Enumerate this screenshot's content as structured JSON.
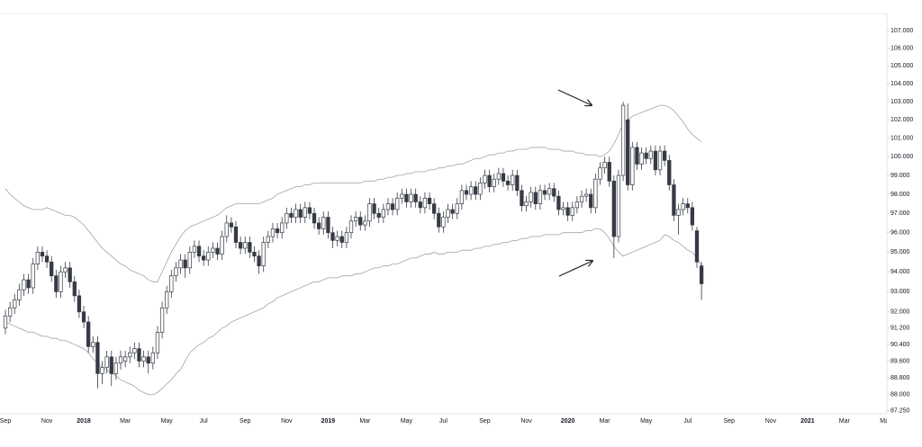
{
  "chart_data": {
    "type": "candlestick",
    "log": true,
    "ylim": [
      87.1,
      108
    ],
    "yticks": [
      {
        "value": 107,
        "label": "107.000"
      },
      {
        "value": 106,
        "label": "106.000"
      },
      {
        "value": 105,
        "label": "105.000"
      },
      {
        "value": 104,
        "label": "104.000"
      },
      {
        "value": 103,
        "label": "103.000"
      },
      {
        "value": 102,
        "label": "102.000"
      },
      {
        "value": 101,
        "label": "101.000"
      },
      {
        "value": 100,
        "label": "100.000"
      },
      {
        "value": 99,
        "label": "99.000"
      },
      {
        "value": 98,
        "label": "98.000"
      },
      {
        "value": 97,
        "label": "97.000"
      },
      {
        "value": 96,
        "label": "96.000"
      },
      {
        "value": 95,
        "label": "95.000"
      },
      {
        "value": 94,
        "label": "94.000"
      },
      {
        "value": 93,
        "label": "93.000"
      },
      {
        "value": 92,
        "label": "92.000"
      },
      {
        "value": 91.2,
        "label": "91.200"
      },
      {
        "value": 90.4,
        "label": "90.400"
      },
      {
        "value": 89.6,
        "label": "89.600"
      },
      {
        "value": 88.8,
        "label": "88.800"
      },
      {
        "value": 88,
        "label": "88.000"
      },
      {
        "value": 87.25,
        "label": "87.250"
      }
    ],
    "up_color": "#ffffff",
    "down_color": "#363a45",
    "categories": [
      "Sep",
      null,
      null,
      null,
      null,
      null,
      null,
      null,
      null,
      "Nov",
      null,
      null,
      null,
      null,
      null,
      null,
      null,
      "2018",
      null,
      null,
      null,
      null,
      null,
      null,
      null,
      null,
      "Mar",
      null,
      null,
      null,
      null,
      null,
      null,
      null,
      null,
      "May",
      null,
      null,
      null,
      null,
      null,
      null,
      null,
      "Jul",
      null,
      null,
      null,
      null,
      null,
      null,
      null,
      null,
      "Sep",
      null,
      null,
      null,
      null,
      null,
      null,
      null,
      null,
      "Nov",
      null,
      null,
      null,
      null,
      null,
      null,
      null,
      null,
      "2019",
      null,
      null,
      null,
      null,
      null,
      null,
      null,
      "Mar",
      null,
      null,
      null,
      null,
      null,
      null,
      null,
      null,
      "May",
      null,
      null,
      null,
      null,
      null,
      null,
      null,
      "Jul",
      null,
      null,
      null,
      null,
      null,
      null,
      null,
      null,
      "Sep",
      null,
      null,
      null,
      null,
      null,
      null,
      null,
      null,
      "Nov",
      null,
      null,
      null,
      null,
      null,
      null,
      null,
      null,
      "2020",
      null,
      null,
      null,
      null,
      null,
      null,
      null,
      "Mar",
      null,
      null,
      null,
      null,
      null,
      null,
      null,
      null,
      "May",
      null,
      null,
      null,
      null,
      null,
      null,
      null,
      null,
      "Jul",
      null,
      null,
      null,
      null,
      null,
      null,
      null,
      null,
      "Sep",
      null,
      null,
      null,
      null,
      null,
      null,
      null,
      null,
      "Nov",
      null,
      null,
      null,
      null,
      null,
      null,
      null,
      "2021",
      null,
      null,
      null,
      null,
      null,
      null,
      null,
      "Mar",
      null,
      null,
      null,
      null,
      null,
      null,
      null,
      null,
      "May"
    ],
    "open": [
      91.2,
      91.8,
      92.2,
      92.6,
      93.1,
      93.6,
      93.2,
      94.4,
      95.0,
      94.8,
      94.5,
      93.8,
      93.0,
      94.0,
      94.2,
      93.5,
      92.8,
      92.0,
      91.5,
      90.3,
      90.5,
      89.0,
      89.3,
      89.8,
      89.0,
      89.5,
      89.6,
      89.8,
      90.0,
      90.2,
      89.6,
      89.8,
      89.5,
      90.0,
      91.0,
      92.2,
      93.0,
      93.8,
      94.2,
      94.6,
      94.2,
      95.0,
      95.3,
      94.8,
      94.6,
      95.0,
      95.2,
      94.9,
      95.8,
      96.5,
      96.3,
      95.5,
      95.2,
      95.5,
      95.0,
      94.8,
      94.3,
      95.5,
      95.8,
      96.2,
      96.0,
      96.5,
      97.0,
      96.8,
      97.2,
      96.8,
      97.3,
      97.0,
      96.5,
      96.2,
      96.8,
      96.0,
      95.6,
      95.8,
      95.5,
      96.0,
      96.6,
      96.8,
      96.4,
      96.6,
      97.5,
      97.0,
      96.8,
      97.2,
      97.5,
      97.2,
      97.8,
      98.0,
      97.6,
      98.0,
      97.6,
      97.3,
      97.8,
      97.5,
      97.0,
      96.3,
      96.8,
      97.2,
      97.0,
      97.5,
      98.2,
      98.0,
      98.4,
      98.0,
      98.6,
      99.0,
      98.4,
      98.8,
      99.1,
      98.7,
      98.5,
      99.0,
      98.2,
      97.4,
      97.6,
      98.1,
      97.5,
      98.2,
      98.0,
      98.3,
      97.9,
      97.2,
      97.3,
      96.9,
      97.3,
      97.6,
      97.9,
      98.0,
      97.3,
      98.8,
      99.4,
      99.7,
      98.7,
      95.8,
      99.0,
      102.0,
      98.5,
      100.5,
      99.6,
      100.2,
      99.9,
      100.3,
      99.3,
      100.3,
      99.8,
      98.5,
      96.9,
      97.2,
      97.5,
      97.3,
      96.1,
      94.3,
      null,
      null,
      null,
      null,
      null,
      null,
      null,
      null,
      null,
      null,
      null,
      null,
      null,
      null,
      null,
      null,
      null,
      null,
      null,
      null,
      null,
      null,
      null,
      null,
      null,
      null,
      null,
      null,
      null,
      null,
      null,
      null,
      null,
      null,
      null,
      null,
      null,
      null,
      null,
      null
    ],
    "high": [
      92.1,
      92.5,
      92.9,
      93.4,
      93.9,
      93.9,
      94.7,
      95.3,
      95.3,
      95.1,
      94.8,
      94.1,
      94.3,
      94.5,
      94.5,
      93.8,
      93.1,
      92.3,
      91.8,
      90.8,
      90.8,
      89.6,
      90.1,
      90.1,
      89.8,
      90.1,
      90.1,
      90.3,
      90.5,
      90.5,
      90.1,
      90.1,
      90.3,
      91.3,
      92.5,
      93.3,
      94.1,
      94.5,
      94.9,
      94.9,
      95.3,
      95.6,
      95.6,
      95.1,
      95.3,
      95.5,
      95.5,
      96.1,
      96.9,
      96.8,
      96.6,
      95.8,
      95.8,
      95.8,
      95.3,
      95.1,
      95.8,
      96.1,
      96.5,
      96.5,
      96.8,
      97.3,
      97.3,
      97.5,
      97.5,
      97.6,
      97.6,
      97.3,
      96.8,
      97.1,
      97.1,
      96.3,
      96.1,
      96.1,
      96.3,
      96.9,
      97.1,
      97.1,
      96.9,
      97.8,
      97.8,
      97.3,
      97.5,
      97.8,
      97.8,
      98.1,
      98.3,
      98.3,
      98.3,
      98.3,
      97.9,
      98.1,
      98.1,
      97.8,
      97.3,
      97.1,
      97.5,
      97.5,
      97.8,
      98.5,
      98.5,
      98.7,
      98.7,
      98.9,
      99.3,
      99.3,
      99.1,
      99.4,
      99.4,
      99.0,
      99.3,
      99.3,
      98.5,
      97.9,
      98.4,
      98.4,
      98.5,
      98.5,
      98.6,
      98.6,
      98.2,
      97.6,
      97.6,
      97.6,
      97.9,
      98.2,
      98.3,
      98.3,
      99.1,
      99.7,
      100.0,
      100.0,
      99.0,
      99.3,
      103.0,
      102.9,
      100.8,
      100.8,
      100.5,
      100.5,
      100.6,
      100.6,
      100.6,
      100.6,
      100.1,
      98.8,
      97.5,
      97.8,
      97.8,
      97.6,
      96.3,
      94.5,
      null,
      null,
      null,
      null,
      null,
      null,
      null,
      null,
      null,
      null,
      null,
      null,
      null,
      null,
      null,
      null,
      null,
      null,
      null,
      null,
      null,
      null,
      null,
      null,
      null,
      null,
      null,
      null,
      null,
      null,
      null,
      null,
      null,
      null,
      null,
      null,
      null,
      null,
      null,
      null
    ],
    "low": [
      90.9,
      91.5,
      91.9,
      92.3,
      92.8,
      92.9,
      92.9,
      94.1,
      94.5,
      94.2,
      93.5,
      92.7,
      92.7,
      93.7,
      93.2,
      92.5,
      91.7,
      91.2,
      90.0,
      90.0,
      88.3,
      88.5,
      89.0,
      88.4,
      88.7,
      89.2,
      89.3,
      89.5,
      89.7,
      89.3,
      89.3,
      89.0,
      89.2,
      89.7,
      90.7,
      91.9,
      92.7,
      93.5,
      93.9,
      93.7,
      93.9,
      94.7,
      94.5,
      94.3,
      94.3,
      94.7,
      94.6,
      94.6,
      95.5,
      96.0,
      95.2,
      94.9,
      94.9,
      94.7,
      94.5,
      93.9,
      94.0,
      95.2,
      95.5,
      95.7,
      95.7,
      96.2,
      96.5,
      96.5,
      96.5,
      96.5,
      96.7,
      96.2,
      95.9,
      95.9,
      95.7,
      95.2,
      95.3,
      95.2,
      95.2,
      95.7,
      96.3,
      96.1,
      96.1,
      96.3,
      96.7,
      96.5,
      96.5,
      96.9,
      96.9,
      96.9,
      97.5,
      97.3,
      97.3,
      97.3,
      97.0,
      97.0,
      97.2,
      96.7,
      96.0,
      96.0,
      96.5,
      96.7,
      96.7,
      97.2,
      97.7,
      97.7,
      97.7,
      97.7,
      98.3,
      98.1,
      98.1,
      98.5,
      98.4,
      98.2,
      98.2,
      97.9,
      97.1,
      97.1,
      97.3,
      97.2,
      97.2,
      97.7,
      97.7,
      97.6,
      96.9,
      96.9,
      96.6,
      96.6,
      97.0,
      97.3,
      97.6,
      97.0,
      97.0,
      98.5,
      99.1,
      98.4,
      94.7,
      95.5,
      98.7,
      98.2,
      98.2,
      99.3,
      99.3,
      99.6,
      99.6,
      99.0,
      99.0,
      99.5,
      98.2,
      96.6,
      95.9,
      96.9,
      97.0,
      96.1,
      94.2,
      92.6,
      null,
      null,
      null,
      null,
      null,
      null,
      null,
      null,
      null,
      null,
      null,
      null,
      null,
      null,
      null,
      null,
      null,
      null,
      null,
      null,
      null,
      null,
      null,
      null,
      null,
      null,
      null,
      null,
      null,
      null,
      null,
      null,
      null,
      null,
      null,
      null,
      null,
      null,
      null,
      null
    ],
    "close": [
      91.8,
      92.2,
      92.6,
      93.1,
      93.6,
      93.2,
      94.4,
      95.0,
      94.8,
      94.5,
      93.8,
      93.0,
      94.0,
      94.2,
      93.5,
      92.8,
      92.0,
      91.5,
      90.3,
      90.5,
      89.0,
      89.3,
      89.8,
      89.0,
      89.5,
      89.8,
      89.8,
      90.0,
      90.2,
      89.6,
      89.8,
      89.5,
      90.0,
      91.0,
      92.2,
      93.0,
      93.8,
      94.2,
      94.6,
      94.2,
      95.0,
      95.3,
      94.8,
      94.6,
      95.0,
      95.2,
      94.9,
      95.8,
      96.5,
      96.3,
      95.5,
      95.2,
      95.5,
      95.0,
      94.8,
      94.3,
      95.5,
      95.8,
      96.2,
      96.0,
      96.5,
      97.0,
      96.8,
      97.2,
      96.8,
      97.3,
      97.0,
      96.5,
      96.2,
      96.8,
      96.0,
      95.6,
      95.8,
      95.5,
      96.0,
      96.6,
      96.8,
      96.4,
      96.6,
      97.5,
      97.0,
      96.8,
      97.2,
      97.5,
      97.2,
      97.8,
      98.0,
      97.6,
      98.0,
      97.6,
      97.3,
      97.8,
      97.5,
      97.0,
      96.3,
      96.8,
      97.2,
      97.0,
      97.5,
      98.2,
      98.0,
      98.4,
      98.0,
      98.6,
      99.0,
      98.4,
      98.8,
      99.1,
      98.7,
      98.5,
      99.0,
      98.2,
      97.4,
      97.6,
      98.1,
      97.5,
      98.2,
      98.0,
      98.3,
      97.9,
      97.2,
      97.3,
      96.9,
      97.3,
      97.6,
      97.9,
      98.0,
      97.3,
      98.8,
      99.4,
      99.7,
      98.7,
      95.8,
      99.0,
      102.8,
      98.5,
      100.5,
      99.6,
      100.2,
      99.9,
      100.3,
      99.3,
      100.3,
      99.8,
      98.5,
      96.9,
      97.2,
      97.5,
      97.3,
      96.4,
      94.5,
      93.4,
      null,
      null,
      null,
      null,
      null,
      null,
      null,
      null,
      null,
      null,
      null,
      null,
      null,
      null,
      null,
      null,
      null,
      null,
      null,
      null,
      null,
      null,
      null,
      null,
      null,
      null,
      null,
      null,
      null,
      null,
      null,
      null,
      null,
      null,
      null,
      null,
      null,
      null,
      null,
      null
    ],
    "bands": [
      {
        "color": "#a3a3a3",
        "values": [
          98.3,
          98.0,
          97.8,
          97.6,
          97.4,
          97.3,
          97.2,
          97.2,
          97.2,
          97.3,
          97.2,
          97.1,
          97.0,
          96.9,
          96.9,
          96.8,
          96.6,
          96.4,
          96.1,
          95.8,
          95.5,
          95.2,
          95.0,
          94.8,
          94.6,
          94.4,
          94.3,
          94.1,
          94.0,
          93.9,
          93.8,
          93.6,
          93.5,
          93.5,
          94.0,
          94.5,
          95.0,
          95.4,
          95.8,
          96.1,
          96.3,
          96.4,
          96.5,
          96.6,
          96.7,
          96.8,
          96.9,
          97.1,
          97.3,
          97.4,
          97.5,
          97.5,
          97.5,
          97.5,
          97.5,
          97.5,
          97.6,
          97.7,
          97.8,
          98.0,
          98.1,
          98.2,
          98.3,
          98.4,
          98.4,
          98.5,
          98.5,
          98.6,
          98.6,
          98.6,
          98.6,
          98.6,
          98.6,
          98.6,
          98.6,
          98.6,
          98.6,
          98.6,
          98.7,
          98.7,
          98.7,
          98.8,
          98.8,
          98.9,
          98.9,
          99.0,
          99.0,
          99.1,
          99.1,
          99.2,
          99.2,
          99.2,
          99.3,
          99.3,
          99.4,
          99.4,
          99.5,
          99.5,
          99.6,
          99.6,
          99.7,
          99.8,
          99.9,
          99.9,
          100.0,
          100.1,
          100.1,
          100.2,
          100.2,
          100.3,
          100.3,
          100.4,
          100.4,
          100.4,
          100.5,
          100.5,
          100.5,
          100.5,
          100.4,
          100.4,
          100.4,
          100.3,
          100.3,
          100.3,
          100.2,
          100.2,
          100.1,
          100.1,
          100.1,
          100.0,
          100.1,
          100.3,
          100.7,
          101.2,
          101.8,
          102.0,
          102.2,
          102.3,
          102.4,
          102.5,
          102.6,
          102.7,
          102.8,
          102.8,
          102.7,
          102.5,
          102.2,
          101.9,
          101.5,
          101.2,
          101.0,
          100.8,
          null,
          null,
          null,
          null,
          null,
          null,
          null,
          null,
          null,
          null,
          null,
          null,
          null,
          null,
          null,
          null,
          null,
          null,
          null,
          null,
          null,
          null,
          null,
          null,
          null,
          null,
          null,
          null,
          null,
          null,
          null,
          null,
          null,
          null,
          null,
          null,
          null,
          null,
          null,
          null
        ]
      },
      {
        "color": "#a3a3a3",
        "values": [
          91.5,
          91.4,
          91.3,
          91.2,
          91.1,
          91.0,
          91.0,
          90.9,
          90.8,
          90.8,
          90.7,
          90.7,
          90.6,
          90.6,
          90.5,
          90.4,
          90.3,
          90.2,
          90.0,
          89.7,
          89.5,
          89.3,
          89.2,
          89.0,
          88.9,
          88.7,
          88.6,
          88.5,
          88.4,
          88.2,
          88.1,
          88.0,
          88.0,
          88.1,
          88.3,
          88.5,
          88.7,
          89.0,
          89.2,
          89.6,
          90.0,
          90.2,
          90.4,
          90.5,
          90.7,
          90.8,
          91.0,
          91.2,
          91.3,
          91.5,
          91.6,
          91.7,
          91.8,
          91.9,
          92.0,
          92.1,
          92.2,
          92.4,
          92.5,
          92.7,
          92.8,
          92.9,
          93.0,
          93.1,
          93.2,
          93.3,
          93.4,
          93.5,
          93.5,
          93.6,
          93.7,
          93.7,
          93.7,
          93.8,
          93.8,
          93.8,
          93.9,
          93.9,
          94.0,
          94.1,
          94.2,
          94.2,
          94.3,
          94.3,
          94.4,
          94.4,
          94.5,
          94.6,
          94.7,
          94.7,
          94.8,
          94.9,
          94.9,
          95.0,
          94.9,
          94.9,
          95.0,
          95.0,
          95.0,
          95.1,
          95.1,
          95.1,
          95.2,
          95.2,
          95.3,
          95.3,
          95.4,
          95.4,
          95.5,
          95.5,
          95.6,
          95.6,
          95.7,
          95.7,
          95.8,
          95.8,
          95.8,
          95.9,
          95.9,
          95.9,
          95.9,
          96.0,
          96.0,
          96.0,
          96.0,
          96.0,
          96.1,
          96.1,
          96.2,
          96.2,
          96.0,
          95.7,
          95.3,
          95.0,
          94.8,
          94.9,
          95.0,
          95.1,
          95.2,
          95.3,
          95.4,
          95.5,
          95.6,
          95.9,
          95.8,
          95.6,
          95.5,
          95.3,
          95.1,
          95.0,
          94.7,
          94.3,
          null,
          null,
          null,
          null,
          null,
          null,
          null,
          null,
          null,
          null,
          null,
          null,
          null,
          null,
          null,
          null,
          null,
          null,
          null,
          null,
          null,
          null,
          null,
          null,
          null,
          null,
          null,
          null,
          null,
          null,
          null,
          null,
          null,
          null,
          null,
          null,
          null,
          null,
          null,
          null
        ]
      }
    ]
  }
}
